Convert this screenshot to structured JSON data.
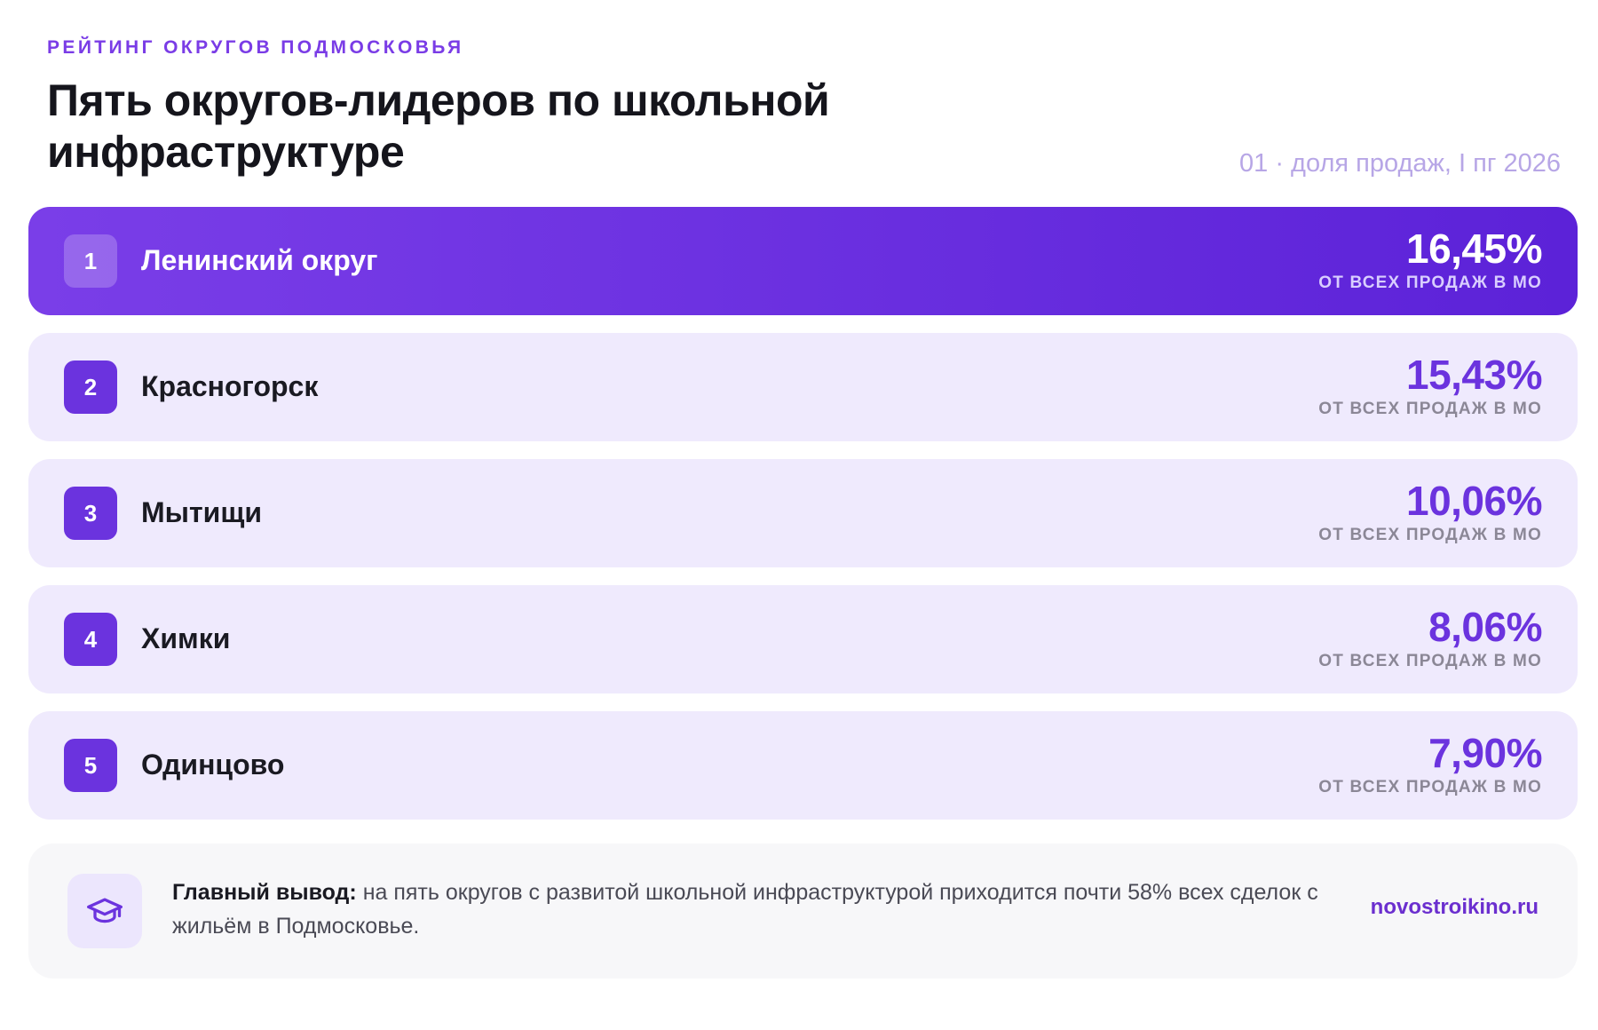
{
  "header": {
    "kicker": "РЕЙТИНГ ОКРУГОВ ПОДМОСКОВЬЯ",
    "title": "Пять округов-лидеров по школьной инфраструктуре",
    "meta": "01 · доля продаж, I пг 2026"
  },
  "ranking": [
    {
      "rank": "1",
      "name": "Ленинский округ",
      "value": "16,45%",
      "caption": "ОТ ВСЕХ ПРОДАЖ В МО",
      "share": 16.45
    },
    {
      "rank": "2",
      "name": "Красногорск",
      "value": "15,43%",
      "caption": "ОТ ВСЕХ ПРОДАЖ В МО",
      "share": 15.43
    },
    {
      "rank": "3",
      "name": "Мытищи",
      "value": "10,06%",
      "caption": "ОТ ВСЕХ ПРОДАЖ В МО",
      "share": 10.06
    },
    {
      "rank": "4",
      "name": "Химки",
      "value": "8,06%",
      "caption": "ОТ ВСЕХ ПРОДАЖ В МО",
      "share": 8.06
    },
    {
      "rank": "5",
      "name": "Одинцово",
      "value": "7,90%",
      "caption": "ОТ ВСЕХ ПРОДАЖ В МО",
      "share": 7.9
    }
  ],
  "footer": {
    "icon": "graduation-cap-icon",
    "lead": "Главный вывод:",
    "text": " на пять округов с развитой школьной инфраструктурой приходится почти 58% всех сделок с жильём в Подмосковье.",
    "link": "novostroikino.ru"
  },
  "colors": {
    "accent": "#6b33de",
    "top_row_start": "#7a3ee8",
    "top_row_end": "#5c22d8",
    "row_bg": "#efeafd"
  }
}
